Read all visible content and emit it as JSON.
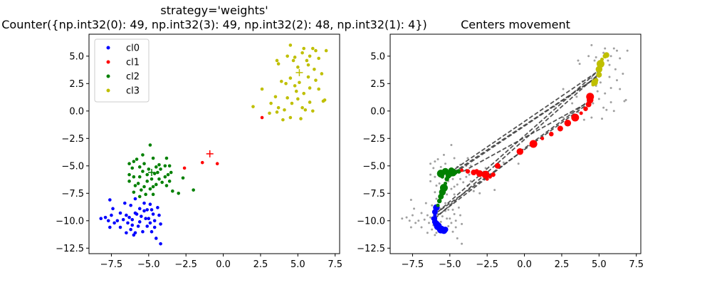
{
  "chart_data": [
    {
      "type": "scatter",
      "title_line1": "strategy='weights'",
      "title_line2": "Counter({np.int32(0): 49, np.int32(3): 49, np.int32(2): 48, np.int32(1): 4})",
      "xlim": [
        -9,
        7.8
      ],
      "ylim": [
        -13,
        7
      ],
      "xticks": [
        -7.5,
        -5.0,
        -2.5,
        0.0,
        2.5,
        5.0,
        7.5
      ],
      "xtick_labels": [
        "−7.5",
        "−5.0",
        "−2.5",
        "0.0",
        "2.5",
        "5.0",
        "7.5"
      ],
      "yticks": [
        5.0,
        2.5,
        0.0,
        -2.5,
        -5.0,
        -7.5,
        -10.0,
        -12.5
      ],
      "ytick_labels": [
        "5.0",
        "2.5",
        "0.0",
        "−2.5",
        "−5.0",
        "−7.5",
        "−10.0",
        "−12.5"
      ],
      "legend_position": "top-left",
      "series": [
        {
          "name": "cl0",
          "color": "#0000ff",
          "points": [
            [
              -7.6,
              -8.1
            ],
            [
              -7.4,
              -8.9
            ],
            [
              -7.5,
              -9.5
            ],
            [
              -8.2,
              -9.8
            ],
            [
              -7.9,
              -9.7
            ],
            [
              -7.7,
              -10.0
            ],
            [
              -7.3,
              -10.2
            ],
            [
              -7.6,
              -10.6
            ],
            [
              -6.6,
              -8.4
            ],
            [
              -6.2,
              -8.6
            ],
            [
              -6.9,
              -9.3
            ],
            [
              -6.5,
              -9.5
            ],
            [
              -6.4,
              -10.2
            ],
            [
              -7.1,
              -10.0
            ],
            [
              -6.9,
              -10.6
            ],
            [
              -6.2,
              -10.8
            ],
            [
              -6.0,
              -11.3
            ],
            [
              -5.9,
              -8.0
            ],
            [
              -5.6,
              -8.9
            ],
            [
              -5.3,
              -8.4
            ],
            [
              -4.9,
              -8.5
            ],
            [
              -4.7,
              -9.4
            ],
            [
              -5.5,
              -9.6
            ],
            [
              -5.9,
              -9.3
            ],
            [
              -5.2,
              -9.8
            ],
            [
              -4.6,
              -10.0
            ],
            [
              -4.3,
              -9.5
            ],
            [
              -4.2,
              -10.3
            ],
            [
              -4.6,
              -10.6
            ],
            [
              -5.1,
              -10.5
            ],
            [
              -5.7,
              -10.5
            ],
            [
              -5.4,
              -11.0
            ],
            [
              -5.9,
              -11.1
            ],
            [
              -4.8,
              -11.0
            ],
            [
              -4.5,
              -11.6
            ],
            [
              -4.2,
              -12.1
            ],
            [
              -6.1,
              -9.9
            ],
            [
              -5.3,
              -9.1
            ],
            [
              -4.8,
              -9.0
            ],
            [
              -5.0,
              -9.8
            ],
            [
              -6.3,
              -9.7
            ],
            [
              -5.6,
              -10.1
            ],
            [
              -4.4,
              -8.8
            ],
            [
              -6.7,
              -9.9
            ],
            [
              -6.1,
              -10.4
            ],
            [
              -4.9,
              -10.2
            ],
            [
              -5.8,
              -9.4
            ],
            [
              -5.1,
              -9.0
            ],
            [
              -6.5,
              -11.1
            ]
          ]
        },
        {
          "name": "cl1",
          "color": "#ff0000",
          "points": [
            [
              -2.6,
              -5.2
            ],
            [
              -1.4,
              -4.7
            ],
            [
              -0.4,
              -4.8
            ],
            [
              2.6,
              -0.6
            ]
          ]
        },
        {
          "name": "cl2",
          "color": "#008000",
          "points": [
            [
              -4.9,
              -3.1
            ],
            [
              -5.4,
              -4.0
            ],
            [
              -4.7,
              -4.3
            ],
            [
              -3.8,
              -4.3
            ],
            [
              -4.3,
              -4.9
            ],
            [
              -4.5,
              -5.1
            ],
            [
              -5.3,
              -4.8
            ],
            [
              -5.8,
              -4.4
            ],
            [
              -6.0,
              -4.6
            ],
            [
              -6.3,
              -4.8
            ],
            [
              -5.6,
              -5.1
            ],
            [
              -5.0,
              -5.3
            ],
            [
              -4.6,
              -5.7
            ],
            [
              -4.2,
              -5.3
            ],
            [
              -3.9,
              -5.0
            ],
            [
              -3.6,
              -5.0
            ],
            [
              -3.5,
              -5.6
            ],
            [
              -3.9,
              -6.0
            ],
            [
              -4.3,
              -6.2
            ],
            [
              -4.8,
              -6.2
            ],
            [
              -5.1,
              -6.4
            ],
            [
              -5.6,
              -6.0
            ],
            [
              -6.0,
              -6.0
            ],
            [
              -6.3,
              -5.8
            ],
            [
              -6.3,
              -6.4
            ],
            [
              -5.7,
              -6.6
            ],
            [
              -5.3,
              -6.9
            ],
            [
              -4.9,
              -7.1
            ],
            [
              -4.7,
              -7.6
            ],
            [
              -5.2,
              -7.6
            ],
            [
              -5.6,
              -7.8
            ],
            [
              -6.0,
              -7.4
            ],
            [
              -3.8,
              -6.8
            ],
            [
              -3.4,
              -7.3
            ],
            [
              -3.0,
              -7.5
            ],
            [
              -2.7,
              -6.1
            ],
            [
              -2.0,
              -7.2
            ],
            [
              -4.4,
              -5.6
            ],
            [
              -5.1,
              -5.8
            ],
            [
              -4.1,
              -6.5
            ],
            [
              -5.4,
              -5.5
            ],
            [
              -4.7,
              -6.9
            ],
            [
              -3.7,
              -5.8
            ],
            [
              -6.1,
              -5.2
            ],
            [
              -5.5,
              -7.2
            ],
            [
              -4.5,
              -6.7
            ],
            [
              -3.6,
              -6.4
            ],
            [
              -5.9,
              -6.8
            ]
          ]
        },
        {
          "name": "cl3",
          "color": "#bfbf00",
          "points": [
            [
              4.5,
              6.0
            ],
            [
              5.4,
              5.7
            ],
            [
              6.0,
              5.7
            ],
            [
              6.2,
              5.5
            ],
            [
              6.9,
              5.5
            ],
            [
              4.3,
              5.0
            ],
            [
              5.3,
              5.3
            ],
            [
              5.8,
              5.0
            ],
            [
              6.4,
              4.8
            ],
            [
              3.6,
              4.6
            ],
            [
              3.7,
              4.3
            ],
            [
              4.7,
              4.6
            ],
            [
              5.7,
              4.2
            ],
            [
              6.1,
              3.8
            ],
            [
              6.6,
              3.4
            ],
            [
              4.5,
              3.0
            ],
            [
              5.7,
              3.1
            ],
            [
              4.2,
              2.5
            ],
            [
              4.8,
              2.3
            ],
            [
              5.1,
              2.6
            ],
            [
              5.8,
              2.1
            ],
            [
              6.4,
              2.0
            ],
            [
              6.8,
              1.0
            ],
            [
              2.6,
              2.0
            ],
            [
              3.5,
              1.3
            ],
            [
              4.3,
              1.2
            ],
            [
              5.0,
              1.1
            ],
            [
              5.4,
              1.6
            ],
            [
              5.8,
              0.8
            ],
            [
              6.7,
              0.9
            ],
            [
              3.2,
              0.7
            ],
            [
              3.7,
              0.3
            ],
            [
              4.1,
              0.1
            ],
            [
              4.6,
              0.7
            ],
            [
              5.3,
              0.3
            ],
            [
              6.0,
              0.0
            ],
            [
              2.0,
              0.4
            ],
            [
              3.6,
              -0.1
            ],
            [
              4.0,
              -0.8
            ],
            [
              4.5,
              -0.6
            ],
            [
              5.2,
              -0.7
            ],
            [
              5.5,
              0.1
            ],
            [
              3.1,
              -0.2
            ],
            [
              4.9,
              1.8
            ],
            [
              6.2,
              2.8
            ],
            [
              5.0,
              4.0
            ],
            [
              4.8,
              4.9
            ],
            [
              5.6,
              4.6
            ],
            [
              3.9,
              2.7
            ]
          ]
        }
      ],
      "centers": [
        {
          "series": "cl1",
          "color": "#ff0000",
          "x": -0.9,
          "y": -3.9
        },
        {
          "series": "cl2",
          "color": "#008000",
          "x": -4.8,
          "y": -5.6
        },
        {
          "series": "cl3",
          "color": "#bfbf00",
          "x": 5.1,
          "y": 3.5
        }
      ]
    },
    {
      "type": "scatter",
      "title": "Centers movement",
      "xlim": [
        -9,
        7.8
      ],
      "ylim": [
        -13,
        7
      ],
      "xticks": [
        -7.5,
        -5.0,
        -2.5,
        0.0,
        2.5,
        5.0,
        7.5
      ],
      "xtick_labels": [
        "−7.5",
        "−5.0",
        "−2.5",
        "0.0",
        "2.5",
        "5.0",
        "7.5"
      ],
      "yticks": [
        5.0,
        2.5,
        0.0,
        -2.5,
        -5.0,
        -7.5,
        -10.0,
        -12.5
      ],
      "ytick_labels": [
        "5.0",
        "2.5",
        "0.0",
        "−2.5",
        "−5.0",
        "−7.5",
        "−10.0",
        "−12.5"
      ],
      "background_points_color": "#a0a0a0",
      "trajectories": [
        {
          "color": "#0000ff",
          "points": [
            [
              -6.0,
              -9.5
            ],
            [
              -6.1,
              -9.8
            ],
            [
              -6.0,
              -10.1
            ],
            [
              -5.9,
              -10.3
            ],
            [
              -5.8,
              -10.5
            ],
            [
              -5.6,
              -10.6
            ],
            [
              -5.5,
              -10.7
            ],
            [
              -5.3,
              -10.8
            ],
            [
              -5.4,
              -10.9
            ],
            [
              -5.6,
              -10.8
            ],
            [
              -5.9,
              -10.2
            ],
            [
              -6.0,
              -9.8
            ],
            [
              -6.0,
              -9.2
            ],
            [
              -5.9,
              -8.8
            ]
          ]
        },
        {
          "color": "#008000",
          "points": [
            [
              -5.8,
              -8.6
            ],
            [
              -5.7,
              -8.2
            ],
            [
              -5.6,
              -7.8
            ],
            [
              -5.5,
              -7.4
            ],
            [
              -5.4,
              -7.0
            ],
            [
              -5.3,
              -6.6
            ],
            [
              -5.2,
              -6.2
            ],
            [
              -5.1,
              -5.9
            ],
            [
              -5.0,
              -5.7
            ],
            [
              -4.8,
              -5.6
            ],
            [
              -4.6,
              -5.6
            ],
            [
              -4.4,
              -5.5
            ],
            [
              -4.9,
              -5.4
            ],
            [
              -5.3,
              -5.5
            ],
            [
              -5.6,
              -5.7
            ],
            [
              -5.5,
              -6.0
            ]
          ]
        },
        {
          "color": "#ff0000",
          "points": [
            [
              -4.2,
              -5.4
            ],
            [
              -3.8,
              -5.5
            ],
            [
              -3.4,
              -5.6
            ],
            [
              -3.0,
              -5.7
            ],
            [
              -2.6,
              -5.8
            ],
            [
              -2.3,
              -6.0
            ],
            [
              -2.1,
              -5.8
            ],
            [
              -1.8,
              -5.0
            ],
            [
              -0.3,
              -3.7
            ],
            [
              0.6,
              -3.0
            ],
            [
              1.2,
              -2.5
            ],
            [
              1.8,
              -2.1
            ],
            [
              2.4,
              -1.6
            ],
            [
              2.9,
              -1.1
            ],
            [
              3.4,
              -0.6
            ],
            [
              3.8,
              -0.2
            ],
            [
              4.1,
              0.2
            ],
            [
              4.3,
              0.6
            ],
            [
              4.4,
              1.0
            ],
            [
              4.4,
              1.3
            ],
            [
              -2.5,
              -6.2
            ],
            [
              -3.2,
              -5.5
            ]
          ]
        },
        {
          "color": "#bfbf00",
          "points": [
            [
              4.6,
              2.4
            ],
            [
              4.8,
              2.8
            ],
            [
              5.0,
              3.3
            ],
            [
              5.0,
              3.8
            ],
            [
              5.1,
              4.3
            ],
            [
              5.2,
              4.7
            ],
            [
              5.4,
              5.0
            ],
            [
              5.5,
              5.1
            ],
            [
              4.7,
              2.6
            ]
          ]
        }
      ],
      "lines": [
        [
          [
            -5.8,
            -9.2
          ],
          [
            4.9,
            3.6
          ]
        ],
        [
          [
            -6.0,
            -9.8
          ],
          [
            5.0,
            3.4
          ]
        ],
        [
          [
            -5.0,
            -5.6
          ],
          [
            4.8,
            3.5
          ]
        ],
        [
          [
            -5.1,
            -5.9
          ],
          [
            5.1,
            3.3
          ]
        ],
        [
          [
            -4.3,
            -5.3
          ],
          [
            5.0,
            3.2
          ]
        ],
        [
          [
            -4.1,
            -5.5
          ],
          [
            4.3,
            0.8
          ]
        ],
        [
          [
            -0.3,
            -3.7
          ],
          [
            4.4,
            1.0
          ]
        ],
        [
          [
            -5.8,
            -9.5
          ],
          [
            -0.3,
            -3.8
          ]
        ],
        [
          [
            -5.6,
            -9.0
          ],
          [
            4.2,
            0.6
          ]
        ]
      ]
    }
  ]
}
